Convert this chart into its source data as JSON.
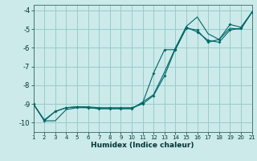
{
  "xlabel": "Humidex (Indice chaleur)",
  "bg_color": "#cceaea",
  "line_color": "#006666",
  "grid_color": "#99cccc",
  "xlim": [
    1,
    21
  ],
  "ylim": [
    -10.5,
    -3.7
  ],
  "xticks": [
    1,
    2,
    3,
    4,
    5,
    6,
    7,
    8,
    9,
    10,
    11,
    12,
    13,
    14,
    15,
    16,
    17,
    18,
    19,
    20,
    21
  ],
  "yticks": [
    -10,
    -9,
    -8,
    -7,
    -6,
    -5,
    -4
  ],
  "series1_x": [
    1,
    2,
    3,
    4,
    5,
    6,
    7,
    8,
    9,
    10,
    11,
    12,
    13,
    14,
    15,
    16,
    17,
    18,
    19,
    20,
    21
  ],
  "series1_y": [
    -9.0,
    -9.9,
    -9.9,
    -9.3,
    -9.2,
    -9.2,
    -9.25,
    -9.25,
    -9.25,
    -9.25,
    -8.9,
    -8.5,
    -7.3,
    -6.0,
    -4.85,
    -4.35,
    -5.25,
    -5.55,
    -4.95,
    -5.0,
    -4.1
  ],
  "series2_x": [
    1,
    2,
    3,
    4,
    5,
    6,
    7,
    8,
    9,
    10,
    11,
    12,
    13,
    14,
    15,
    16,
    17,
    18,
    19,
    20,
    21
  ],
  "series2_y": [
    -9.0,
    -9.9,
    -9.4,
    -9.2,
    -9.15,
    -9.15,
    -9.2,
    -9.2,
    -9.2,
    -9.2,
    -9.0,
    -8.55,
    -7.5,
    -6.05,
    -4.9,
    -5.15,
    -5.6,
    -5.7,
    -5.05,
    -4.95,
    -4.1
  ],
  "series3_x": [
    1,
    2,
    3,
    4,
    5,
    6,
    7,
    8,
    9,
    10,
    11,
    12,
    13,
    14,
    15,
    16,
    17,
    18,
    19,
    20,
    21
  ],
  "series3_y": [
    -9.0,
    -9.85,
    -9.4,
    -9.2,
    -9.15,
    -9.2,
    -9.25,
    -9.25,
    -9.25,
    -9.25,
    -8.95,
    -7.35,
    -6.1,
    -6.1,
    -4.95,
    -5.05,
    -5.7,
    -5.55,
    -4.75,
    -4.9,
    -4.1
  ],
  "markers2_x": [
    2,
    3,
    4,
    5,
    6,
    7,
    8,
    9,
    10,
    11,
    12,
    13,
    14,
    15,
    16,
    17,
    18,
    19,
    20,
    21
  ],
  "markers2_y": [
    -9.9,
    -9.4,
    -9.2,
    -9.15,
    -9.15,
    -9.2,
    -9.2,
    -9.2,
    -9.2,
    -9.0,
    -8.55,
    -7.5,
    -6.05,
    -4.9,
    -5.15,
    -5.6,
    -5.7,
    -5.05,
    -4.95,
    -4.1
  ],
  "markers3_x": [
    2,
    3,
    4,
    5,
    6,
    7,
    8,
    9,
    10,
    11,
    12,
    13,
    14,
    15,
    16,
    17,
    18,
    19,
    20,
    21
  ],
  "markers3_y": [
    -9.85,
    -9.4,
    -9.2,
    -9.15,
    -9.2,
    -9.25,
    -9.25,
    -9.25,
    -9.25,
    -8.95,
    -7.35,
    -6.1,
    -6.1,
    -4.95,
    -5.05,
    -5.7,
    -5.55,
    -4.75,
    -4.9,
    -4.1
  ]
}
